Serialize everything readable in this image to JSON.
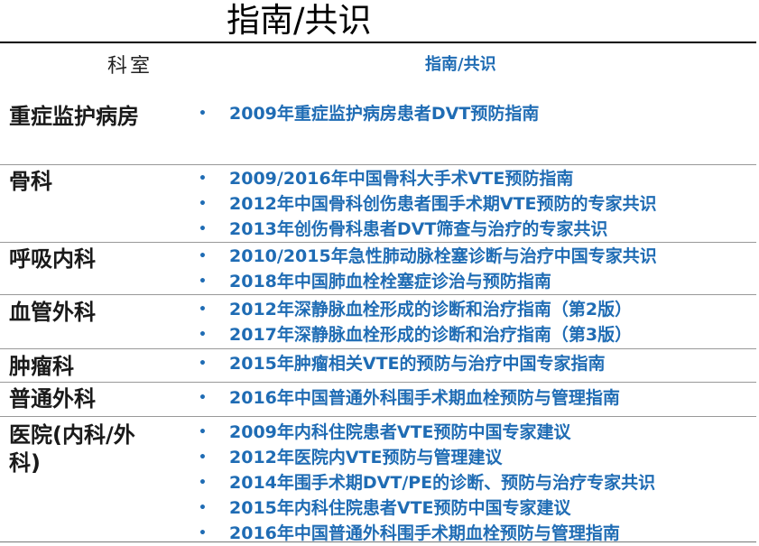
{
  "title": "指南/共识",
  "table": {
    "header": {
      "dept": "科室",
      "guide": "指南/共识"
    },
    "rows": [
      {
        "dept": "重症监护病房",
        "items": [
          "2009年重症监护病房患者DVT预防指南"
        ]
      },
      {
        "dept": "骨科",
        "items": [
          "2009/2016年中国骨科大手术VTE预防指南",
          "2012年中国骨科创伤患者围手术期VTE预防的专家共识",
          "2013年创伤骨科患者DVT筛查与治疗的专家共识"
        ]
      },
      {
        "dept": "呼吸内科",
        "items": [
          "2010/2015年急性肺动脉栓塞诊断与治疗中国专家共识",
          "2018年中国肺血栓栓塞症诊治与预防指南"
        ]
      },
      {
        "dept": "血管外科",
        "items": [
          "2012年深静脉血栓形成的诊断和治疗指南（第2版）",
          "2017年深静脉血栓形成的诊断和治疗指南（第3版）"
        ]
      },
      {
        "dept": "肿瘤科",
        "items": [
          "2015年肿瘤相关VTE的预防与治疗中国专家指南"
        ]
      },
      {
        "dept": "普通外科",
        "items": [
          "2016年中国普通外科围手术期血栓预防与管理指南"
        ]
      },
      {
        "dept": "医院(内科/外科)",
        "items": [
          "2009年内科住院患者VTE预防中国专家建议",
          "2012年医院内VTE预防与管理建议",
          "2014年围手术期DVT/PE的诊断、预防与治疗专家共识",
          "2015年内科住院患者VTE预防中国专家建议",
          "2016年中国普通外科围手术期血栓预防与管理指南"
        ]
      }
    ]
  },
  "colors": {
    "accent": "#1f6cb4",
    "text": "#1a1a1a"
  }
}
